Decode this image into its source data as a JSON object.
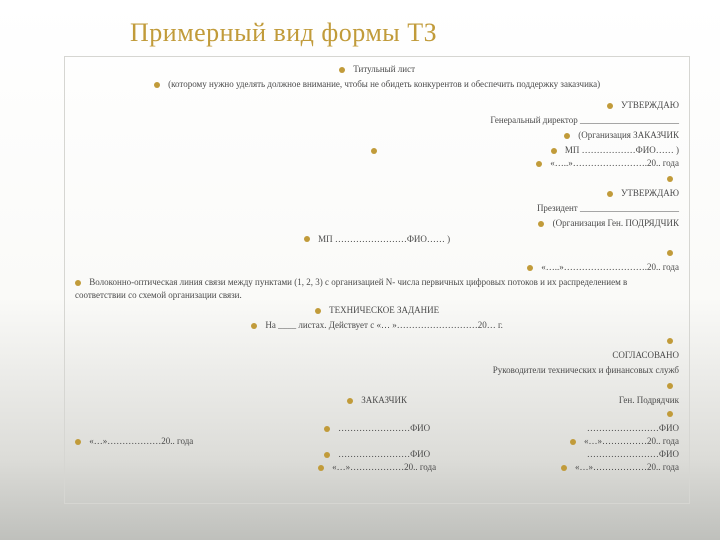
{
  "title": "Примерный вид формы ТЗ",
  "body": {
    "line1": "Титульный лист",
    "line2": "(которому нужно уделять должное внимание, чтобы не обидеть конкурентов и обеспечить поддержку заказчика)",
    "approve": "УТВЕРЖДАЮ",
    "gen_dir": "Генеральный директор ______________________",
    "org_cust": "(Организация ЗАКАЗЧИК",
    "mp1": "МП          ………………ФИО…… )",
    "date1": "«…..»…………………….20..  года",
    "president": "Президент ______________________",
    "org_contr": "(Организация Ген. ПОДРЯДЧИК",
    "mp2": "МП          ……………………ФИО…… )",
    "date2": "«…..»……………………….20.. года",
    "main_desc": "Волоконно-оптическая линия связи между пунктами (1, 2, 3) с организацией N- числа первичных цифровых потоков и их распределением в соответствии со схемой организации связи.",
    "tz": "ТЕХНИЧЕСКОЕ ЗАДАНИЕ",
    "sheets": "На ____ листах. Действует с  «… »………………………20… г.",
    "agreed": "СОГЛАСОВАНО",
    "heads": "Руководители технических и финансовых служб",
    "customer": "ЗАКАЗЧИК",
    "contractor": "Ген. Подрядчик",
    "fio": "……………………ФИО",
    "date_a": "«…»………………20.. года",
    "date_b": "«…»……………20.. года"
  }
}
